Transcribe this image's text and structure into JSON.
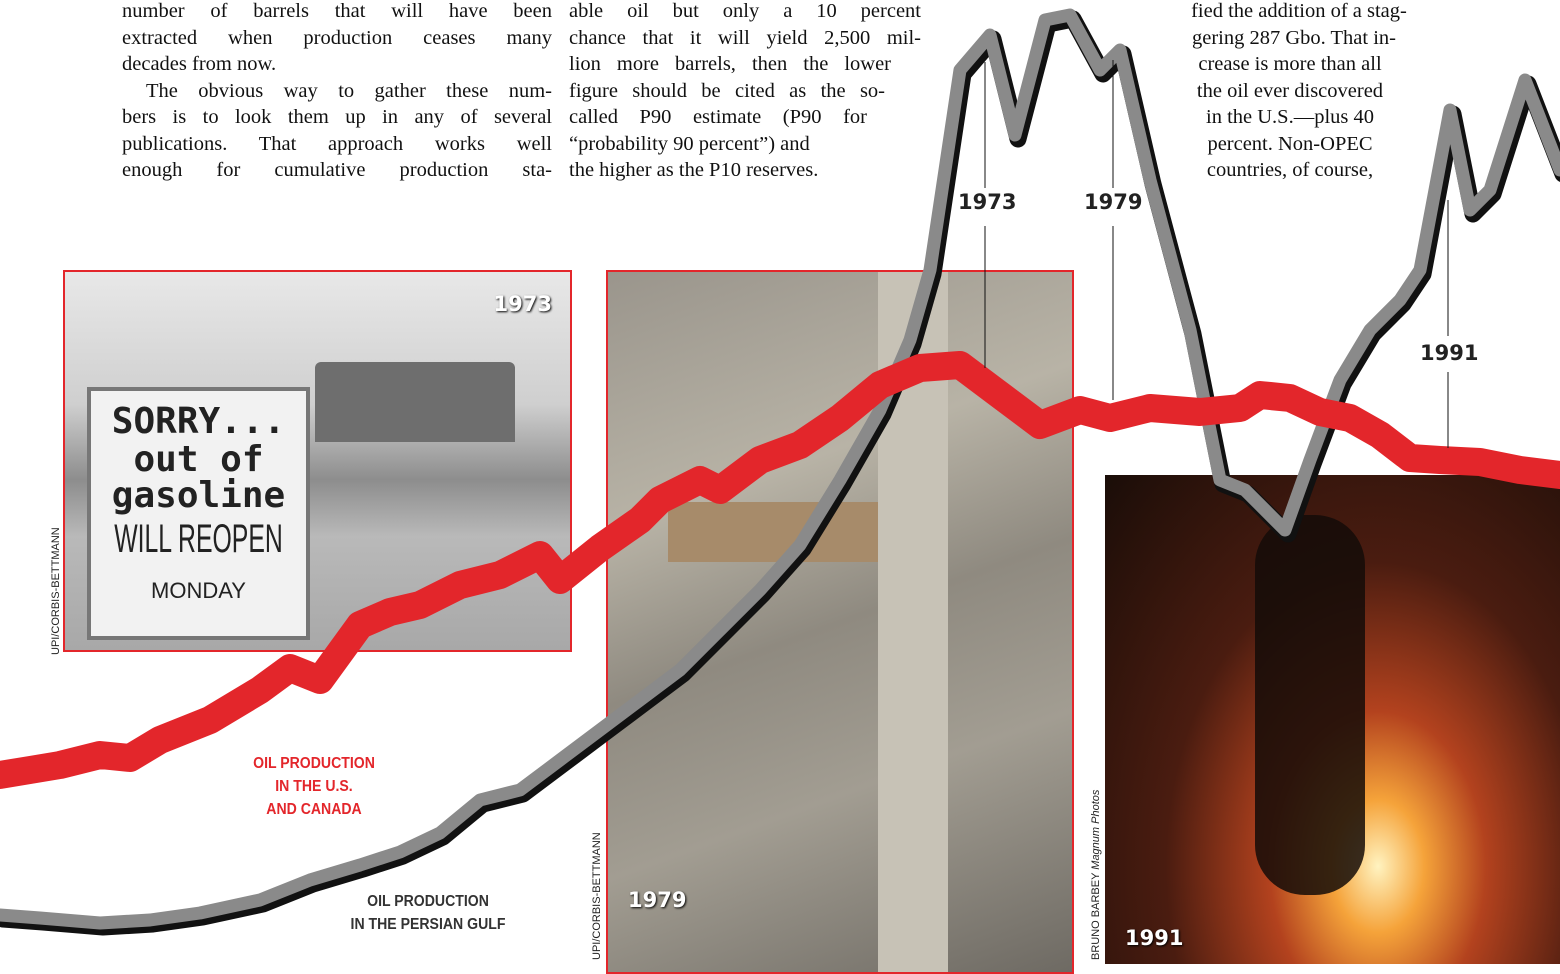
{
  "columns": [
    {
      "lines": [
        "number of barrels that will have been",
        "extracted when production ceases many",
        "decades from now.",
        "The obvious way to gather these num-",
        "bers is to look them up in any of several",
        "publications. That approach works well",
        "enough for cumulative production sta-"
      ]
    },
    {
      "lines": [
        "able oil but only a 10 percent",
        "chance that it will yield 2,500 mil-",
        "lion more barrels, then the lower",
        "figure should be cited as the so-",
        "called P90 estimate (P90 for",
        "“probability 90 percent”) and",
        "the higher as the P10 reserves."
      ]
    },
    {
      "lines": [
        "fied the addition of a stag-",
        "gering 287 Gbo. That in-",
        "crease is more than all",
        "the oil ever discovered",
        "in the U.S.—plus 40",
        "percent. Non-OPEC",
        "countries, of course,"
      ]
    }
  ],
  "year_markers": [
    "1973",
    "1979",
    "1991"
  ],
  "photos": [
    {
      "year": "1973",
      "credit": "UPI/CORBIS-BETTMANN",
      "sign": [
        "SORRY...",
        "out of",
        "gasoline",
        "WILL REOPEN",
        "MONDAY"
      ]
    },
    {
      "year": "1979",
      "credit": "UPI/CORBIS-BETTMANN"
    },
    {
      "year": "1991",
      "credit": "BRUNO BARBEY",
      "credit_agency": "Magnum Photos"
    }
  ],
  "line_labels": {
    "us_canada": [
      "OIL PRODUCTION",
      "IN THE U.S.",
      "AND CANADA"
    ],
    "persian_gulf": [
      "OIL PRODUCTION",
      "IN THE PERSIAN GULF"
    ]
  }
}
